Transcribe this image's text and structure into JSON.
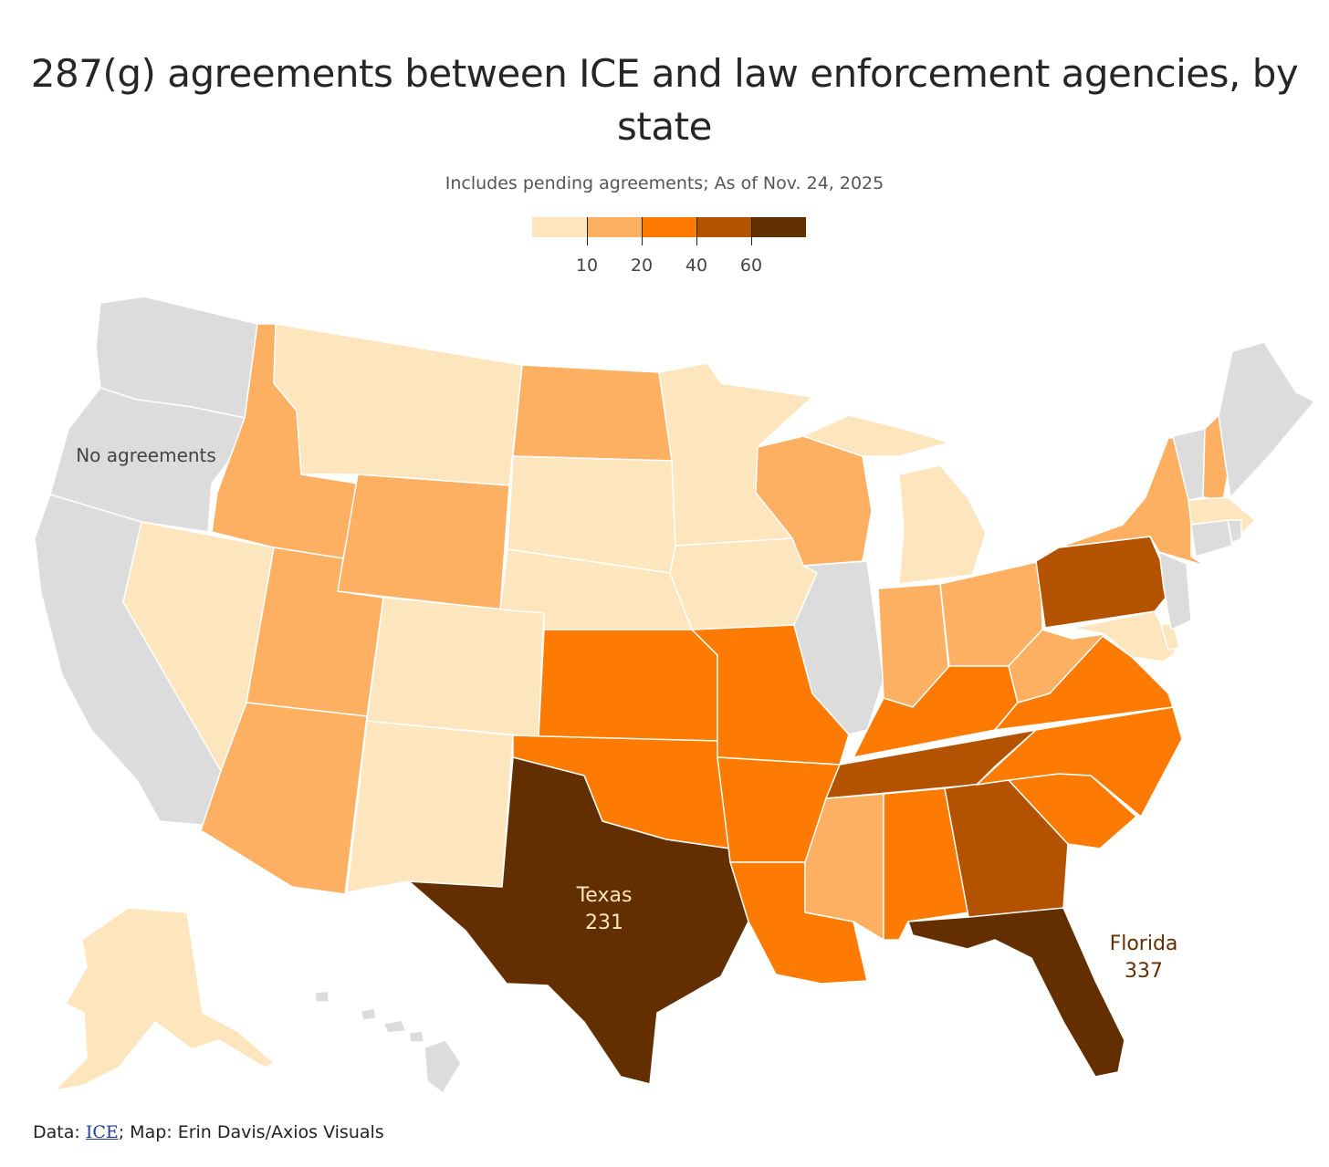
{
  "title": "287(g) agreements between ICE and law enforcement agencies, by state",
  "subtitle": "Includes pending agreements; As of Nov. 24, 2025",
  "legend": {
    "colors": [
      "#fde5bd",
      "#fdaf62",
      "#fd7a03",
      "#b35300",
      "#632f00"
    ],
    "ticks": [
      "10",
      "20",
      "40",
      "60"
    ]
  },
  "colors": {
    "none": "#dcdcdc",
    "c1": "#fde5bd",
    "c2": "#fdaf62",
    "c3": "#fd7a03",
    "c4": "#b35300",
    "c5": "#632f00"
  },
  "labels": {
    "no_agreements": "No agreements",
    "texas_name": "Texas",
    "texas_value": "231",
    "florida_name": "Florida",
    "florida_value": "337"
  },
  "source": {
    "prefix": "Data: ",
    "link": "ICE",
    "suffix": "; Map: Erin Davis/Axios Visuals"
  }
}
